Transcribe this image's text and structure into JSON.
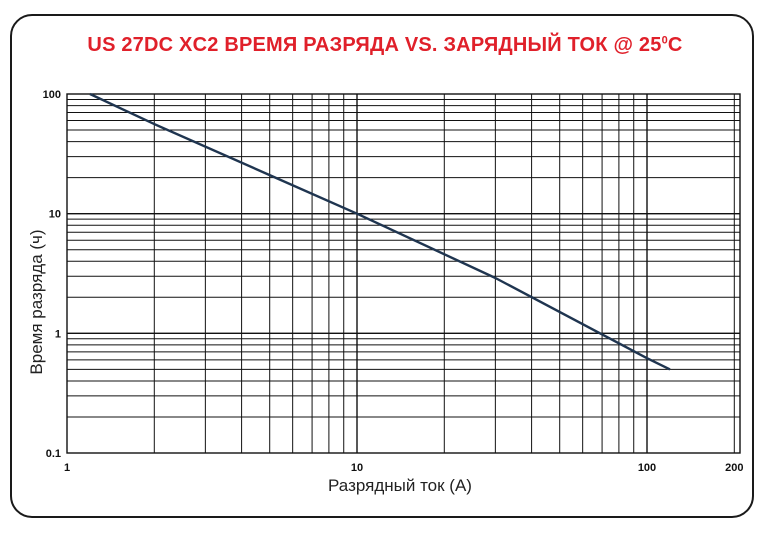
{
  "chart_data": {
    "type": "line",
    "title_main": "US 27DC XC2 ВРЕМЯ РАЗРЯДА VS. ЗАРЯДНЫЙ ТОК @ 25",
    "title_sup": "0",
    "title_end": "C",
    "xlabel": "Разрядный ток (А)",
    "ylabel": "Время разряда (ч)",
    "x_scale": "log",
    "y_scale": "log",
    "xlim": [
      1,
      200
    ],
    "ylim": [
      0.1,
      100
    ],
    "x_ticks": [
      {
        "value": 1,
        "label": "1"
      },
      {
        "value": 10,
        "label": "10"
      },
      {
        "value": 100,
        "label": "100"
      },
      {
        "value": 200,
        "label": "200"
      }
    ],
    "y_ticks": [
      {
        "value": 100,
        "label": "100"
      },
      {
        "value": 10,
        "label": "10"
      },
      {
        "value": 1,
        "label": "1"
      },
      {
        "value": 0.1,
        "label": "0.1"
      }
    ],
    "grid": true,
    "series": [
      {
        "color": "#1f3550",
        "points": [
          {
            "x": 1.2,
            "y": 100
          },
          {
            "x": 2,
            "y": 56
          },
          {
            "x": 5,
            "y": 21
          },
          {
            "x": 10,
            "y": 10
          },
          {
            "x": 30,
            "y": 2.9
          },
          {
            "x": 100,
            "y": 0.62
          },
          {
            "x": 120,
            "y": 0.5
          }
        ]
      }
    ]
  }
}
